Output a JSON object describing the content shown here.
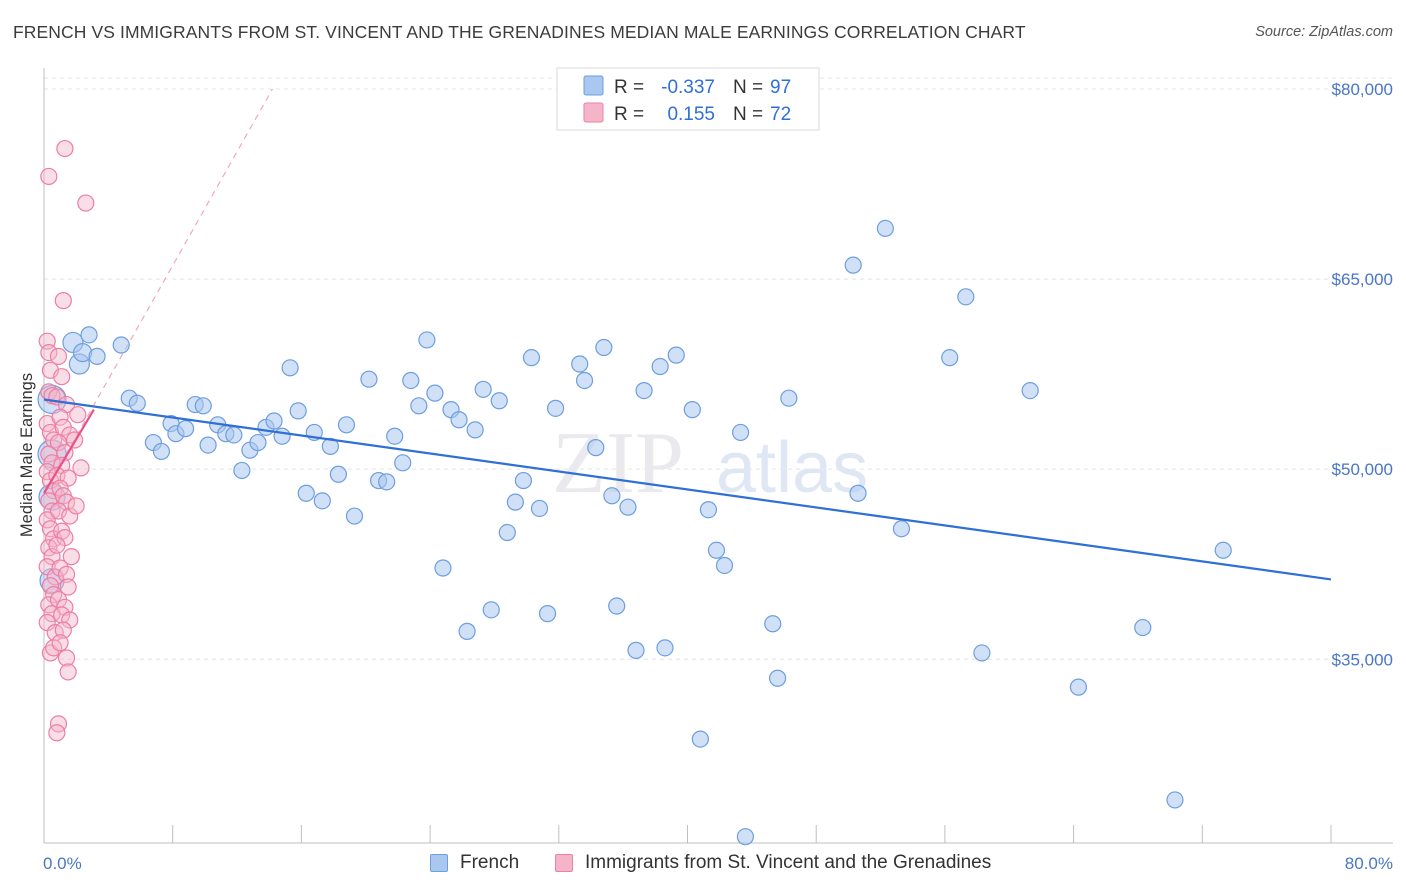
{
  "title": "FRENCH VS IMMIGRANTS FROM ST. VINCENT AND THE GRENADINES MEDIAN MALE EARNINGS CORRELATION CHART",
  "source": "Source: ZipAtlas.com",
  "watermark": {
    "part1": "ZIP",
    "part2": "atlas"
  },
  "colors": {
    "blue_fill": "#a9c7ef",
    "blue_stroke": "#6d9ee0",
    "blue_line": "#2f6fd6",
    "pink_fill": "#f5b5c9",
    "pink_stroke": "#ee7ea3",
    "pink_line": "#e8528a",
    "axis_label": "#4a76c6"
  },
  "legend": {
    "rows": [
      {
        "r_label": "R =",
        "r_value": "-0.337",
        "n_label": "N =",
        "n_value": "97"
      },
      {
        "r_label": "R =",
        "r_value": "0.155",
        "n_label": "N =",
        "n_value": "72"
      }
    ]
  },
  "bottom_legend": {
    "french": "French",
    "immigrants": "Immigrants from St. Vincent and the Grenadines"
  },
  "chart_data": {
    "type": "scatter",
    "xlabel": "",
    "ylabel": "Median Male Earnings",
    "xlim": [
      0,
      80
    ],
    "ylim": [
      20500,
      81500
    ],
    "x_tick_labels": {
      "min": "0.0%",
      "max": "80.0%"
    },
    "y_ticks": [
      35000,
      50000,
      65000,
      80000
    ],
    "y_tick_labels": [
      "$35,000",
      "$50,000",
      "$65,000",
      "$80,000"
    ],
    "series": [
      {
        "name": "French",
        "r": -0.337,
        "n": 97,
        "trend": {
          "x": [
            0,
            80
          ],
          "y": [
            55500,
            41300
          ]
        },
        "points": [
          [
            0.5,
            55500,
            14
          ],
          [
            0.5,
            51200,
            14
          ],
          [
            0.5,
            47800,
            13
          ],
          [
            0.5,
            41200,
            12
          ],
          [
            1.8,
            60000,
            10
          ],
          [
            2.2,
            58300,
            10
          ],
          [
            2.4,
            59200,
            9
          ],
          [
            2.8,
            60600,
            8
          ],
          [
            3.3,
            58900,
            8
          ],
          [
            4.8,
            59800,
            8
          ],
          [
            5.3,
            55600,
            8
          ],
          [
            5.8,
            55200,
            8
          ],
          [
            6.8,
            52100,
            8
          ],
          [
            7.3,
            51400,
            8
          ],
          [
            7.9,
            53600,
            8
          ],
          [
            8.2,
            52800,
            8
          ],
          [
            8.8,
            53200,
            8
          ],
          [
            9.4,
            55100,
            8
          ],
          [
            9.9,
            55000,
            8
          ],
          [
            10.2,
            51900,
            8
          ],
          [
            10.8,
            53500,
            8
          ],
          [
            11.3,
            52800,
            8
          ],
          [
            11.8,
            52700,
            8
          ],
          [
            12.3,
            49900,
            8
          ],
          [
            12.8,
            51500,
            8
          ],
          [
            13.3,
            52100,
            8
          ],
          [
            13.8,
            53300,
            8
          ],
          [
            14.3,
            53800,
            8
          ],
          [
            14.8,
            52600,
            8
          ],
          [
            15.3,
            58000,
            8
          ],
          [
            15.8,
            54600,
            8
          ],
          [
            16.3,
            48100,
            8
          ],
          [
            16.8,
            52900,
            8
          ],
          [
            17.3,
            47500,
            8
          ],
          [
            17.8,
            51800,
            8
          ],
          [
            18.3,
            49600,
            8
          ],
          [
            18.8,
            53500,
            8
          ],
          [
            19.3,
            46300,
            8
          ],
          [
            20.2,
            57100,
            8
          ],
          [
            20.8,
            49100,
            8
          ],
          [
            21.3,
            49000,
            8
          ],
          [
            21.8,
            52600,
            8
          ],
          [
            22.3,
            50500,
            8
          ],
          [
            22.8,
            57000,
            8
          ],
          [
            23.3,
            55000,
            8
          ],
          [
            23.8,
            60200,
            8
          ],
          [
            24.3,
            56000,
            8
          ],
          [
            24.8,
            42200,
            8
          ],
          [
            25.3,
            54700,
            8
          ],
          [
            25.8,
            53900,
            8
          ],
          [
            26.3,
            37200,
            8
          ],
          [
            26.8,
            53100,
            8
          ],
          [
            27.3,
            56300,
            8
          ],
          [
            27.8,
            38900,
            8
          ],
          [
            28.3,
            55400,
            8
          ],
          [
            28.8,
            45000,
            8
          ],
          [
            29.3,
            47400,
            8
          ],
          [
            29.8,
            49100,
            8
          ],
          [
            30.3,
            58800,
            8
          ],
          [
            30.8,
            46900,
            8
          ],
          [
            31.3,
            38600,
            8
          ],
          [
            31.8,
            54800,
            8
          ],
          [
            33.3,
            58300,
            8
          ],
          [
            33.6,
            57000,
            8
          ],
          [
            34.3,
            51700,
            8
          ],
          [
            34.8,
            59600,
            8
          ],
          [
            35.3,
            47900,
            8
          ],
          [
            35.6,
            39200,
            8
          ],
          [
            36.3,
            47000,
            8
          ],
          [
            36.8,
            35700,
            8
          ],
          [
            37.3,
            56200,
            8
          ],
          [
            38.3,
            58100,
            8
          ],
          [
            38.6,
            35900,
            8
          ],
          [
            39.3,
            59000,
            8
          ],
          [
            40.3,
            54700,
            8
          ],
          [
            40.8,
            28700,
            8
          ],
          [
            41.3,
            46800,
            8
          ],
          [
            41.8,
            43600,
            8
          ],
          [
            42.3,
            42400,
            8
          ],
          [
            43.3,
            52900,
            8
          ],
          [
            43.6,
            21000,
            8
          ],
          [
            45.3,
            37800,
            8
          ],
          [
            45.6,
            33500,
            8
          ],
          [
            46.3,
            55600,
            8
          ],
          [
            50.3,
            66100,
            8
          ],
          [
            50.6,
            48100,
            8
          ],
          [
            52.3,
            69000,
            8
          ],
          [
            53.3,
            45300,
            8
          ],
          [
            56.3,
            58800,
            8
          ],
          [
            57.3,
            63600,
            8
          ],
          [
            58.3,
            35500,
            8
          ],
          [
            61.3,
            56200,
            8
          ],
          [
            64.3,
            32800,
            8
          ],
          [
            68.3,
            37500,
            8
          ],
          [
            70.3,
            23900,
            8
          ],
          [
            73.3,
            43600,
            8
          ]
        ]
      },
      {
        "name": "Immigrants from St. Vincent and the Grenadines",
        "r": 0.155,
        "n": 72,
        "trend": {
          "x": [
            0,
            3.1
          ],
          "y": [
            48100,
            54700
          ]
        },
        "trend_extended": {
          "x": [
            0,
            14.2
          ],
          "y": [
            48100,
            80000
          ]
        },
        "points": [
          [
            0.2,
            60100,
            8
          ],
          [
            0.3,
            59200,
            8
          ],
          [
            0.4,
            57800,
            8
          ],
          [
            0.3,
            56100,
            8
          ],
          [
            0.5,
            55800,
            8
          ],
          [
            0.2,
            53600,
            8
          ],
          [
            0.4,
            52900,
            8
          ],
          [
            0.6,
            52300,
            8
          ],
          [
            0.3,
            51200,
            8
          ],
          [
            0.5,
            50500,
            8
          ],
          [
            0.2,
            49800,
            8
          ],
          [
            0.4,
            49100,
            8
          ],
          [
            0.6,
            48300,
            8
          ],
          [
            0.3,
            47500,
            8
          ],
          [
            0.5,
            46700,
            8
          ],
          [
            0.2,
            46000,
            8
          ],
          [
            0.4,
            45300,
            8
          ],
          [
            0.6,
            44500,
            8
          ],
          [
            0.3,
            43800,
            8
          ],
          [
            0.5,
            43100,
            8
          ],
          [
            0.2,
            42300,
            8
          ],
          [
            0.7,
            41500,
            8
          ],
          [
            0.4,
            40800,
            8
          ],
          [
            0.6,
            40100,
            8
          ],
          [
            0.3,
            39300,
            8
          ],
          [
            0.5,
            38600,
            8
          ],
          [
            0.2,
            37900,
            8
          ],
          [
            0.7,
            37100,
            8
          ],
          [
            0.4,
            35500,
            8
          ],
          [
            0.6,
            35900,
            8
          ],
          [
            0.3,
            73100,
            8
          ],
          [
            1.3,
            75300,
            8
          ],
          [
            2.6,
            71000,
            8
          ],
          [
            1.2,
            63300,
            8
          ],
          [
            0.9,
            58900,
            8
          ],
          [
            1.1,
            57300,
            8
          ],
          [
            0.8,
            55700,
            8
          ],
          [
            1.4,
            55100,
            8
          ],
          [
            1.0,
            54100,
            8
          ],
          [
            1.2,
            53300,
            8
          ],
          [
            1.6,
            52700,
            8
          ],
          [
            0.9,
            52100,
            8
          ],
          [
            1.3,
            51300,
            8
          ],
          [
            1.1,
            50300,
            8
          ],
          [
            0.8,
            49500,
            8
          ],
          [
            1.5,
            49300,
            8
          ],
          [
            1.0,
            48500,
            8
          ],
          [
            1.2,
            47900,
            8
          ],
          [
            1.4,
            47400,
            8
          ],
          [
            0.9,
            46700,
            8
          ],
          [
            1.6,
            46300,
            8
          ],
          [
            1.1,
            45100,
            8
          ],
          [
            1.3,
            44600,
            8
          ],
          [
            0.8,
            44000,
            8
          ],
          [
            1.7,
            43100,
            8
          ],
          [
            1.0,
            42200,
            8
          ],
          [
            1.4,
            41700,
            8
          ],
          [
            1.5,
            40700,
            8
          ],
          [
            0.9,
            39700,
            8
          ],
          [
            1.3,
            39100,
            8
          ],
          [
            1.1,
            38500,
            8
          ],
          [
            1.6,
            38100,
            8
          ],
          [
            1.2,
            37300,
            8
          ],
          [
            1.0,
            36300,
            8
          ],
          [
            1.4,
            35100,
            8
          ],
          [
            1.5,
            34000,
            8
          ],
          [
            0.9,
            29900,
            8
          ],
          [
            0.8,
            29200,
            8
          ],
          [
            2.1,
            54300,
            8
          ],
          [
            1.9,
            52300,
            8
          ],
          [
            2.3,
            50100,
            8
          ],
          [
            2.0,
            47100,
            8
          ]
        ]
      }
    ]
  }
}
